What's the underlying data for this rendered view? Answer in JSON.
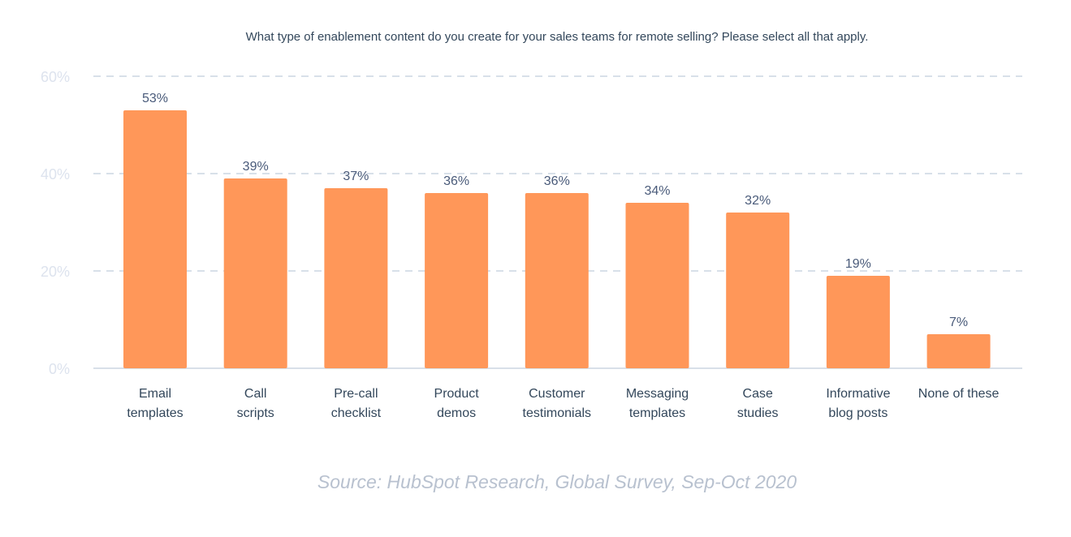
{
  "chart_data": {
    "type": "bar",
    "title": "What type of enablement content do you create for your sales teams for remote selling? Please select all that apply.",
    "categories": [
      [
        "Email",
        "templates"
      ],
      [
        "Call",
        "scripts"
      ],
      [
        "Pre-call",
        "checklist"
      ],
      [
        "Product",
        "demos"
      ],
      [
        "Customer",
        "testimonials"
      ],
      [
        "Messaging",
        "templates"
      ],
      [
        "Case",
        "studies"
      ],
      [
        "Informative",
        "blog posts"
      ],
      [
        "None of these"
      ]
    ],
    "values": [
      53,
      39,
      37,
      36,
      36,
      34,
      32,
      19,
      7
    ],
    "value_labels": [
      "53%",
      "39%",
      "37%",
      "36%",
      "36%",
      "34%",
      "32%",
      "19%",
      "7%"
    ],
    "yticks": [
      0,
      20,
      40,
      60
    ],
    "ytick_labels": [
      "0%",
      "20%",
      "40%",
      "60%"
    ],
    "ylim": [
      0,
      60
    ],
    "grid": true,
    "bar_color": "#ff9759",
    "gridline_color": "#cbd6e2",
    "text_color": "#33475b",
    "source": "Source: HubSpot Research, Global Survey, Sep-Oct 2020"
  }
}
